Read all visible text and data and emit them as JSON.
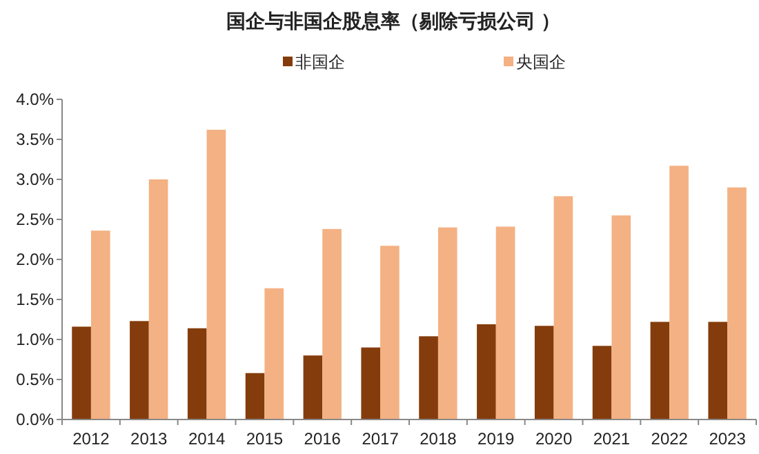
{
  "chart_data": {
    "type": "bar",
    "title": "国企与非国企股息率（剔除亏损公司 ）",
    "categories": [
      "2012",
      "2013",
      "2014",
      "2015",
      "2016",
      "2017",
      "2018",
      "2019",
      "2020",
      "2021",
      "2022",
      "2023"
    ],
    "series": [
      {
        "name": "非国企",
        "color": "#843c0c",
        "values": [
          1.16,
          1.23,
          1.14,
          0.58,
          0.8,
          0.9,
          1.04,
          1.19,
          1.17,
          0.92,
          1.22,
          1.22
        ]
      },
      {
        "name": "央国企",
        "color": "#f4b183",
        "values": [
          2.36,
          3.0,
          3.62,
          1.64,
          2.38,
          2.17,
          2.4,
          2.41,
          2.79,
          2.55,
          3.17,
          2.9
        ]
      }
    ],
    "ylim": [
      0,
      4
    ],
    "yticks": [
      {
        "value": 0,
        "label": "0.0%"
      },
      {
        "value": 0.5,
        "label": "0.5%"
      },
      {
        "value": 1,
        "label": "1.0%"
      },
      {
        "value": 1.5,
        "label": "1.5%"
      },
      {
        "value": 2,
        "label": "2.0%"
      },
      {
        "value": 2.5,
        "label": "2.5%"
      },
      {
        "value": 3,
        "label": "3.0%"
      },
      {
        "value": 3.5,
        "label": "3.5%"
      },
      {
        "value": 4,
        "label": "4.0%"
      }
    ],
    "grid": false,
    "legend": "top"
  }
}
